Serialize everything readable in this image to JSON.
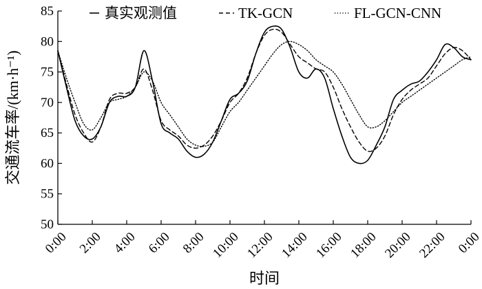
{
  "chart_data": {
    "type": "line",
    "xlabel": "时间",
    "ylabel": "交通流车率/(km·h⁻¹)",
    "ylim": [
      50,
      85
    ],
    "yticks": [
      50,
      55,
      60,
      65,
      70,
      75,
      80,
      85
    ],
    "xlim": [
      0,
      24
    ],
    "xtick_labels": [
      "0:00",
      "2:00",
      "4:00",
      "6:00",
      "8:00",
      "10:00",
      "12:00",
      "14:00",
      "16:00",
      "18:00",
      "20:00",
      "22:00",
      "0:00"
    ],
    "grid": false,
    "legend_position": "top",
    "series": [
      {
        "name": "真实观测值",
        "style": "solid",
        "x": [
          0,
          0.5,
          1,
          1.5,
          2,
          2.5,
          3,
          3.5,
          4,
          4.5,
          5,
          5.5,
          6,
          6.5,
          7,
          7.5,
          8,
          8.5,
          9,
          9.5,
          10,
          10.5,
          11,
          11.5,
          12,
          12.5,
          13,
          13.5,
          14,
          14.5,
          15,
          15.5,
          16,
          16.5,
          17,
          17.5,
          18,
          18.5,
          19,
          19.5,
          20,
          20.5,
          21,
          21.5,
          22,
          22.5,
          23,
          23.5,
          24
        ],
        "values": [
          78.5,
          72.5,
          67,
          64.5,
          64,
          66,
          70,
          71,
          71,
          72.5,
          78.5,
          73.5,
          66.5,
          65,
          64,
          62,
          61,
          61.5,
          63.5,
          67,
          70.5,
          71.5,
          73.5,
          78,
          81.5,
          82.5,
          82,
          79,
          75,
          74,
          75.5,
          74,
          69,
          64.5,
          61,
          60,
          60.5,
          63,
          66,
          70.5,
          72,
          73,
          73.5,
          75,
          77,
          79.5,
          79,
          77.5,
          77
        ]
      },
      {
        "name": "TK-GCN",
        "style": "dashed",
        "x": [
          0,
          0.5,
          1,
          1.5,
          2,
          2.5,
          3,
          3.5,
          4,
          4.5,
          5,
          5.5,
          6,
          6.5,
          7,
          7.5,
          8,
          8.5,
          9,
          9.5,
          10,
          10.5,
          11,
          11.5,
          12,
          12.5,
          13,
          13.5,
          14,
          14.5,
          15,
          15.5,
          16,
          16.5,
          17,
          17.5,
          18,
          18.5,
          19,
          19.5,
          20,
          20.5,
          21,
          21.5,
          22,
          22.5,
          23,
          23.5,
          24
        ],
        "values": [
          78.5,
          73,
          68,
          65,
          63.5,
          66,
          70.5,
          71.5,
          71.5,
          72.5,
          75.5,
          72,
          67,
          65.5,
          64.5,
          63,
          62.5,
          63,
          64.5,
          67,
          70,
          71.5,
          74,
          78,
          81,
          82,
          81.5,
          79.5,
          77.5,
          76.5,
          75.5,
          75,
          72.5,
          69,
          66,
          63.5,
          62,
          62.5,
          64.5,
          68,
          70.5,
          72,
          73,
          74,
          76,
          78,
          79,
          78.5,
          77
        ]
      },
      {
        "name": "FL-GCN-CNN",
        "style": "dotted",
        "x": [
          0,
          0.5,
          1,
          1.5,
          2,
          2.5,
          3,
          3.5,
          4,
          4.5,
          5,
          5.5,
          6,
          6.5,
          7,
          7.5,
          8,
          8.5,
          9,
          9.5,
          10,
          10.5,
          11,
          11.5,
          12,
          12.5,
          13,
          13.5,
          14,
          14.5,
          15,
          15.5,
          16,
          16.5,
          17,
          17.5,
          18,
          18.5,
          19,
          19.5,
          20,
          20.5,
          21,
          21.5,
          22,
          22.5,
          23,
          23.5,
          24
        ],
        "values": [
          78.5,
          74,
          70,
          66.5,
          65.5,
          67.5,
          70,
          70.5,
          71,
          72.5,
          75,
          73.5,
          70,
          68,
          66,
          64,
          63,
          62.8,
          63.5,
          66,
          68.5,
          70,
          72,
          74,
          76,
          78,
          79.5,
          80,
          79.5,
          78.5,
          77,
          76,
          75,
          73,
          70.5,
          68,
          66,
          66,
          67,
          68.5,
          70,
          71,
          72,
          73,
          74,
          75,
          76,
          77,
          77.5
        ]
      }
    ]
  }
}
